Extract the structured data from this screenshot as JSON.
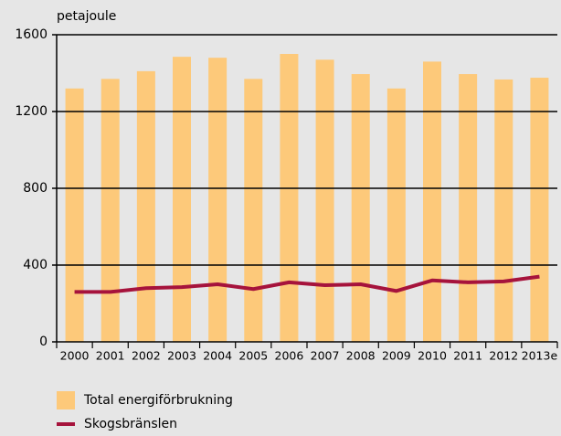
{
  "chart_data": {
    "type": "bar_line",
    "y_label": "petajoule",
    "categories": [
      "2000",
      "2001",
      "2002",
      "2003",
      "2004",
      "2005",
      "2006",
      "2007",
      "2008",
      "2009",
      "2010",
      "2011",
      "2012",
      "2013e"
    ],
    "series": [
      {
        "name": "Total energiförbrukning",
        "type": "bar",
        "color": "#fdc97a",
        "values": [
          1320,
          1370,
          1410,
          1485,
          1480,
          1370,
          1500,
          1470,
          1395,
          1320,
          1460,
          1395,
          1367,
          1376
        ]
      },
      {
        "name": "Skogsbränslen",
        "type": "line",
        "color": "#a6133c",
        "values": [
          260,
          260,
          280,
          285,
          300,
          275,
          310,
          295,
          300,
          265,
          320,
          310,
          315,
          340
        ]
      }
    ],
    "ylim": [
      0,
      1600
    ],
    "yticks": [
      0,
      400,
      800,
      1200,
      1600
    ],
    "grid": true
  }
}
